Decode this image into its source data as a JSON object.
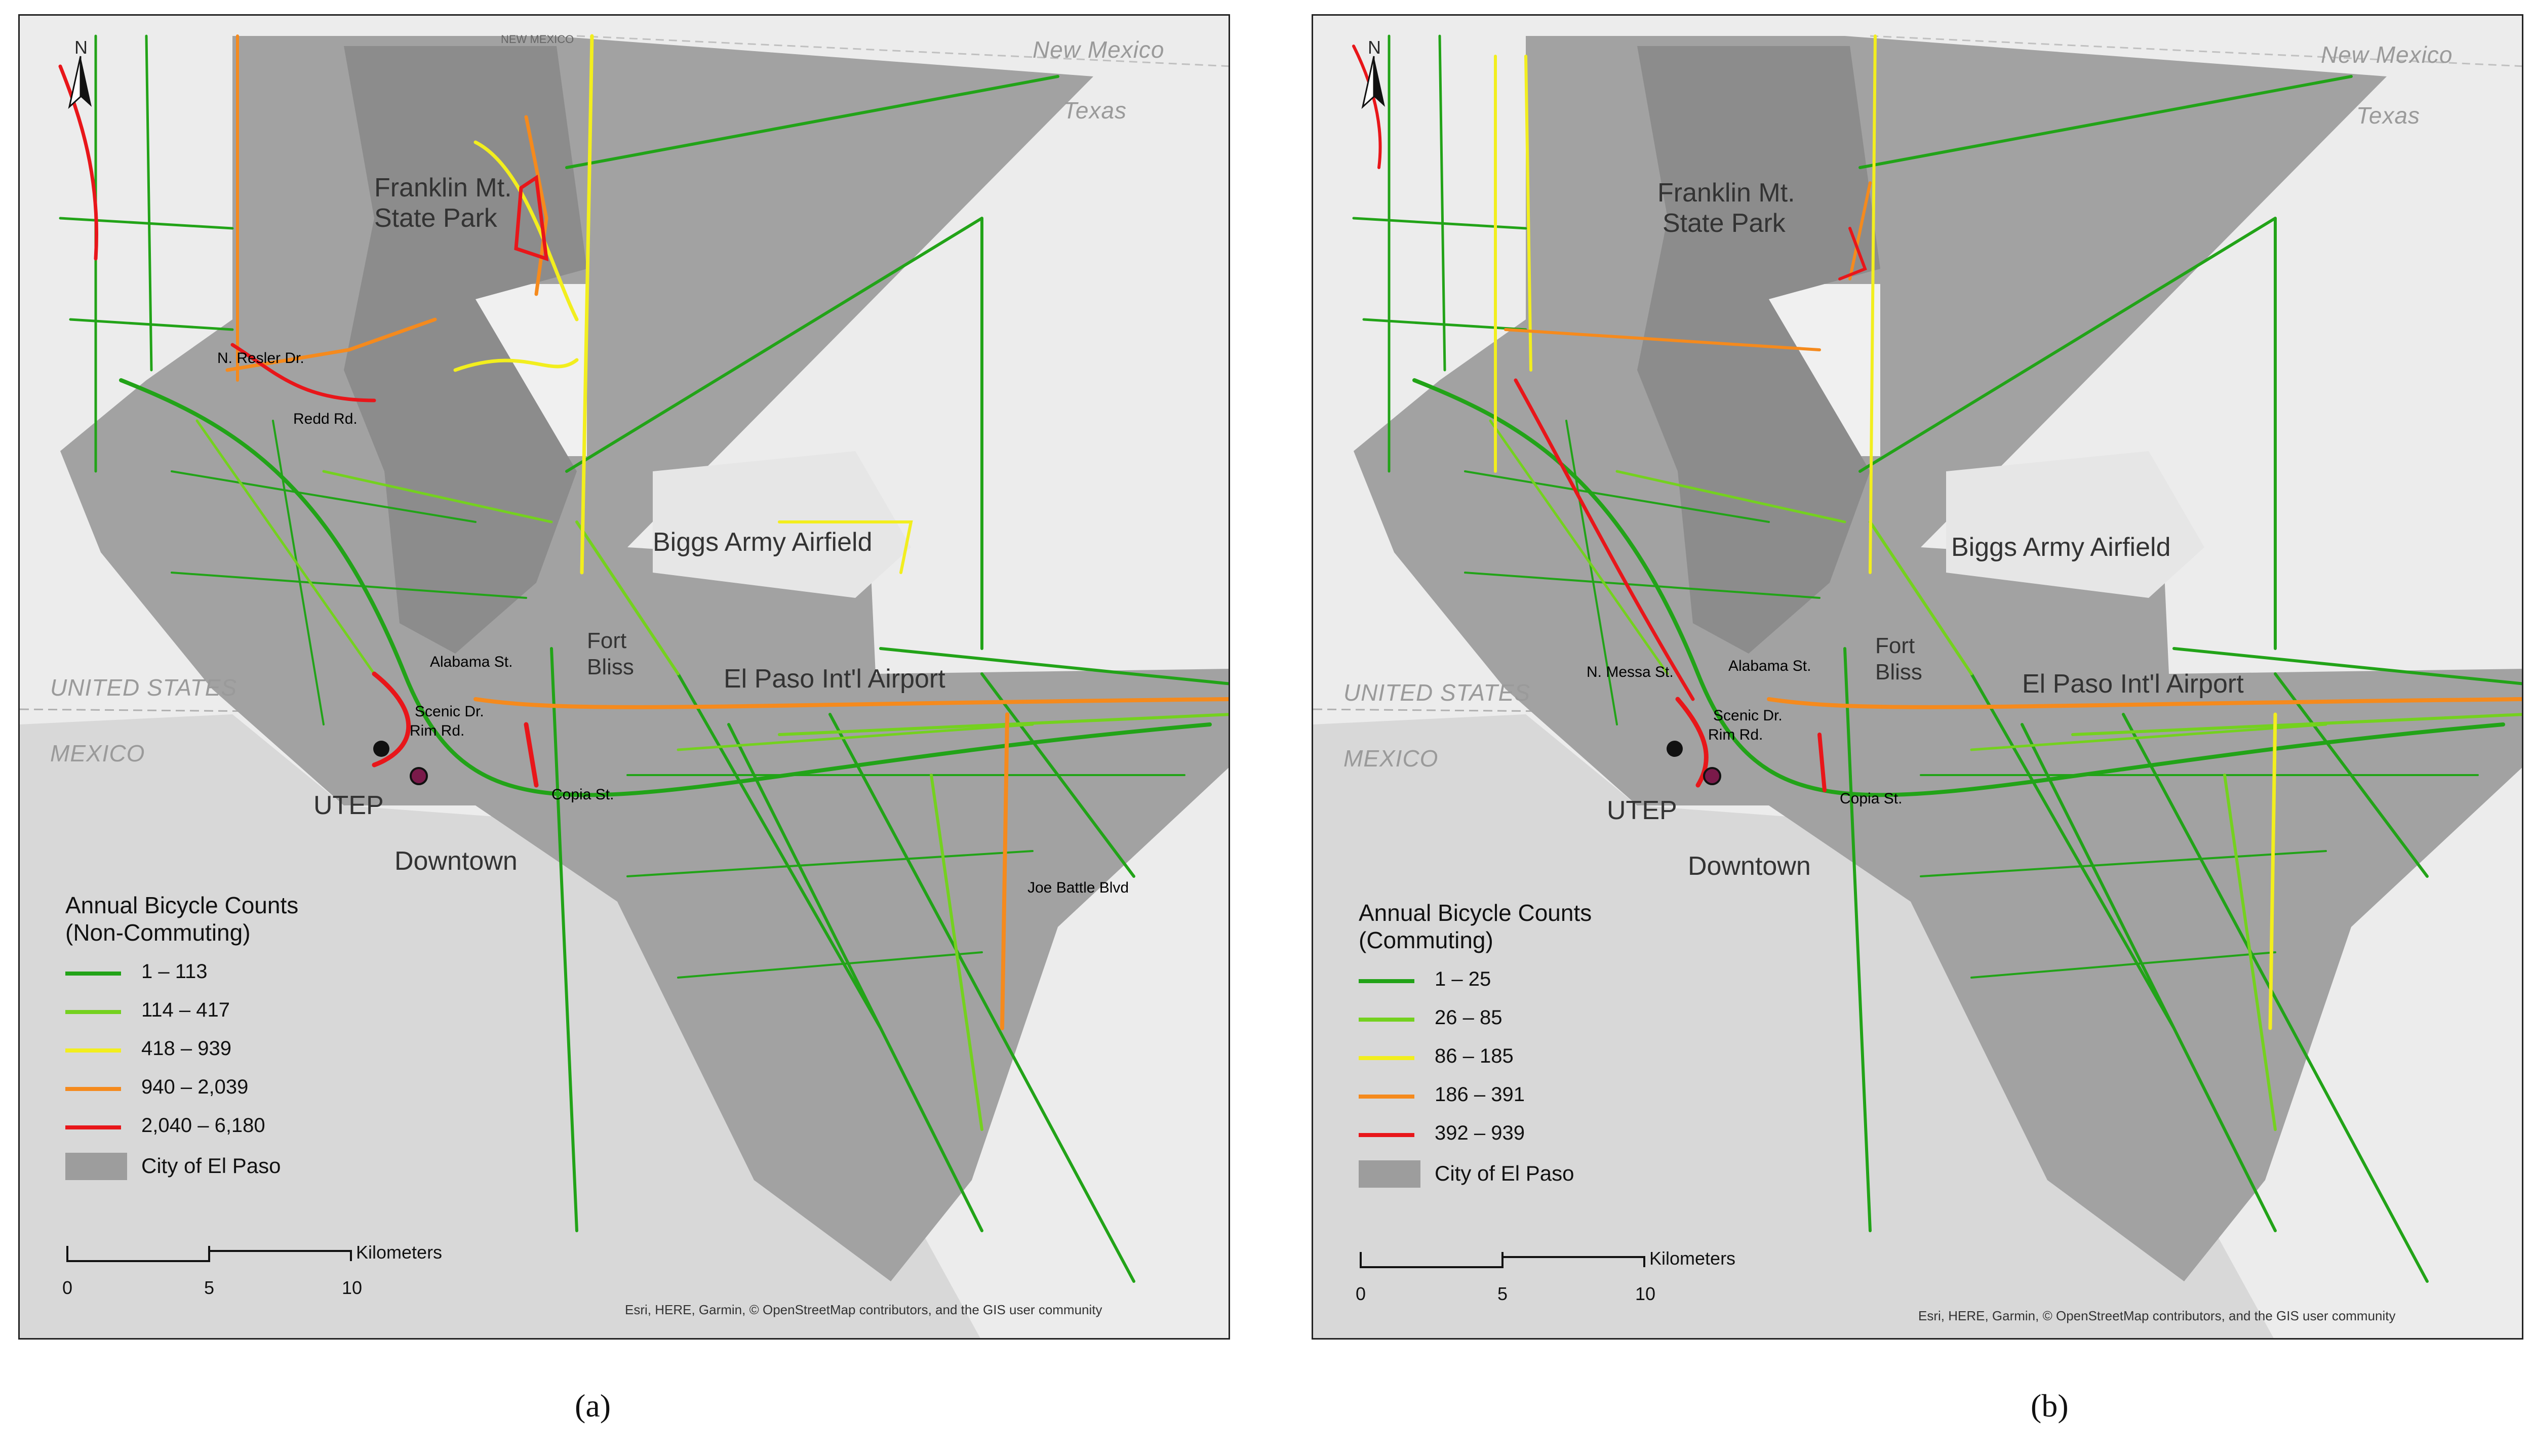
{
  "panels": [
    {
      "id": "a",
      "panel_label": "(a)",
      "legend": {
        "title_line1": "Annual Bicycle Counts",
        "title_line2": "(Non-Commuting)",
        "classes": [
          {
            "label": "1 – 113",
            "color": "#22a318"
          },
          {
            "label": "114 – 417",
            "color": "#74d11f"
          },
          {
            "label": "418 – 939",
            "color": "#f2ee1e"
          },
          {
            "label": "940 – 2,039",
            "color": "#f58a1d"
          },
          {
            "label": "2,040 – 6,180",
            "color": "#e8161a"
          }
        ],
        "city_label": "City of El Paso"
      },
      "streets": {
        "resler": "N. Resler Dr.",
        "redd": "Redd Rd.",
        "alabama": "Alabama St.",
        "scenic": "Scenic Dr.",
        "rim": "Rim Rd.",
        "copia": "Copia St.",
        "joe_battle": "Joe Battle Blvd"
      }
    },
    {
      "id": "b",
      "panel_label": "(b)",
      "legend": {
        "title_line1": "Annual Bicycle Counts",
        "title_line2": "(Commuting)",
        "classes": [
          {
            "label": "1 – 25",
            "color": "#22a318"
          },
          {
            "label": "26 – 85",
            "color": "#74d11f"
          },
          {
            "label": "86 – 185",
            "color": "#f2ee1e"
          },
          {
            "label": "186 – 391",
            "color": "#f58a1d"
          },
          {
            "label": "392 – 939",
            "color": "#e8161a"
          }
        ],
        "city_label": "City of El Paso"
      },
      "streets": {
        "messa": "N. Messa St.",
        "alabama": "Alabama St.",
        "scenic": "Scenic Dr.",
        "rim": "Rim Rd.",
        "copia": "Copia St."
      }
    }
  ],
  "map_labels": {
    "new_mexico": "New Mexico",
    "nm_line": "NEW MEXICO",
    "texas": "Texas",
    "united_states": "UNITED STATES",
    "mexico": "MEXICO",
    "franklin_1": "Franklin Mt.",
    "franklin_2": "State Park",
    "biggs": "Biggs Army Airfield",
    "fort_1": "Fort",
    "fort_2": "Bliss",
    "airport": "El Paso Int'l Airport",
    "utep": "UTEP",
    "downtown": "Downtown",
    "north": "N"
  },
  "scalebar": {
    "ticks": [
      "0",
      "5",
      "10"
    ],
    "unit": "Kilometers"
  },
  "credit": "Esri, HERE, Garmin, © OpenStreetMap contributors, and the GIS user community",
  "colors": {
    "background": "#ececec",
    "city_fill": "#9d9d9d",
    "park_fill": "#8f8f8f",
    "mexico_fill": "#dcdcdc",
    "blank_area": "#f2f2f2"
  }
}
